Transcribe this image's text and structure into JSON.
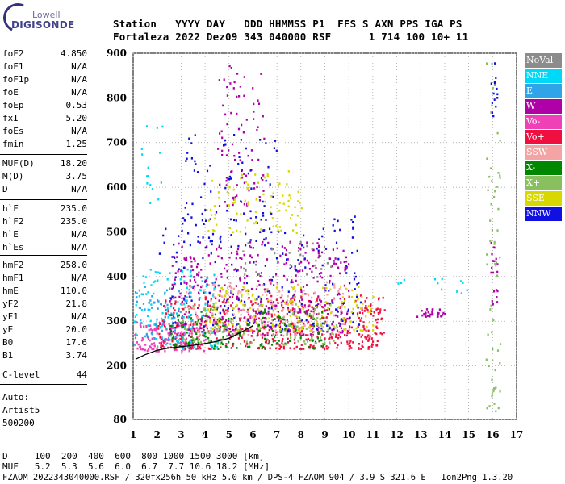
{
  "logo": {
    "top": "Lowell",
    "main": "DIGISONDE"
  },
  "header": {
    "labels": "Station   YYYY DAY   DDD HHMMSS P1  FFS S AXN PPS IGA PS",
    "values": "Fortaleza 2022 Dez09 343 040000 RSF      1 714 100 10+ 11"
  },
  "params_group1": [
    {
      "name": "foF2",
      "value": "4.850"
    },
    {
      "name": "foF1",
      "value": "N/A"
    },
    {
      "name": "foF1p",
      "value": "N/A"
    },
    {
      "name": "foE",
      "value": "N/A"
    },
    {
      "name": "foEp",
      "value": "0.53"
    },
    {
      "name": "fxI",
      "value": "5.20"
    },
    {
      "name": "foEs",
      "value": "N/A"
    },
    {
      "name": "fmin",
      "value": "1.25"
    }
  ],
  "params_group2": [
    {
      "name": "MUF(D)",
      "value": "18.20"
    },
    {
      "name": "M(D)",
      "value": "3.75"
    },
    {
      "name": "D",
      "value": "N/A"
    }
  ],
  "params_group3": [
    {
      "name": "h`F",
      "value": "235.0"
    },
    {
      "name": "h`F2",
      "value": "235.0"
    },
    {
      "name": "h`E",
      "value": "N/A"
    },
    {
      "name": "h`Es",
      "value": "N/A"
    }
  ],
  "params_group4": [
    {
      "name": "hmF2",
      "value": "258.0"
    },
    {
      "name": "hmF1",
      "value": "N/A"
    },
    {
      "name": "hmE",
      "value": "110.0"
    },
    {
      "name": "yF2",
      "value": "21.8"
    },
    {
      "name": "yF1",
      "value": "N/A"
    },
    {
      "name": "yE",
      "value": "20.0"
    },
    {
      "name": "B0",
      "value": "17.6"
    },
    {
      "name": "B1",
      "value": "3.74"
    }
  ],
  "params_group5": [
    {
      "name": "C-level",
      "value": "44"
    }
  ],
  "auto": {
    "line1": "Auto:",
    "line2": "Artist5",
    "line3": "500200"
  },
  "footer": {
    "d_row": "D     100  200  400  600  800 1000 1500 3000 [km]",
    "muf_row": "MUF   5.2  5.3  5.6  6.0  6.7  7.7 10.6 18.2 [MHz]",
    "info": "FZAOM_2022343040000.RSF / 320fx256h 50 kHz 5.0 km / DPS-4 FZAOM 904 / 3.9 S 321.6 E   Ion2Png 1.3.20"
  },
  "legend": [
    {
      "label": "NoVal",
      "color": "#8c8c8c"
    },
    {
      "label": "NNE",
      "color": "#00d8f8"
    },
    {
      "label": "E",
      "color": "#2fa4e8"
    },
    {
      "label": "W",
      "color": "#b000a8"
    },
    {
      "label": "Vo-",
      "color": "#f040b8"
    },
    {
      "label": "Vo+",
      "color": "#f01040"
    },
    {
      "label": "SSW",
      "color": "#f4a4a4"
    },
    {
      "label": "X-",
      "color": "#008800"
    },
    {
      "label": "X+",
      "color": "#88c060"
    },
    {
      "label": "SSE",
      "color": "#d8d800"
    },
    {
      "label": "NNW",
      "color": "#1010e0"
    }
  ],
  "chart_data": {
    "type": "scatter",
    "title": "",
    "xlabel": "",
    "ylabel": "",
    "xlim": [
      1,
      17
    ],
    "ylim": [
      80,
      900
    ],
    "x_ticks": [
      "1",
      "2",
      "3",
      "4",
      "5",
      "6",
      "7",
      "8",
      "9",
      "10",
      "11",
      "12",
      "13",
      "14",
      "15",
      "16",
      "17"
    ],
    "y_ticks": [
      "80",
      "200",
      "300",
      "400",
      "500",
      "600",
      "700",
      "800",
      "900"
    ],
    "grid": true,
    "trace_curve": {
      "name": "",
      "x": [
        1.1,
        1.5,
        2.0,
        2.5,
        3.0,
        3.5,
        4.0,
        4.5,
        5.0,
        5.5,
        6.0
      ],
      "y": [
        215,
        225,
        235,
        240,
        243,
        246,
        250,
        255,
        262,
        275,
        290
      ]
    },
    "clusters": [
      {
        "orientation": "Vo-",
        "x_range": [
          1.0,
          4.0
        ],
        "y_range": [
          235,
          300
        ],
        "count": 160
      },
      {
        "orientation": "Vo+",
        "x_range": [
          2.0,
          11.5
        ],
        "y_range": [
          240,
          360
        ],
        "count": 500
      },
      {
        "orientation": "W",
        "x_range": [
          2.5,
          10.0
        ],
        "y_range": [
          270,
          480
        ],
        "count": 450
      },
      {
        "orientation": "NNW",
        "x_range": [
          2.0,
          10.5
        ],
        "y_range": [
          280,
          540
        ],
        "count": 200
      },
      {
        "orientation": "NNE",
        "x_range": [
          1.0,
          4.5
        ],
        "y_range": [
          240,
          420
        ],
        "count": 140
      },
      {
        "orientation": "E",
        "x_range": [
          1.0,
          3.5
        ],
        "y_range": [
          260,
          380
        ],
        "count": 70
      },
      {
        "orientation": "SSW",
        "x_range": [
          3.0,
          10.0
        ],
        "y_range": [
          270,
          390
        ],
        "count": 180
      },
      {
        "orientation": "SSE",
        "x_range": [
          4.0,
          11.0
        ],
        "y_range": [
          280,
          380
        ],
        "count": 170
      },
      {
        "orientation": "X-",
        "x_range": [
          2.5,
          9.0
        ],
        "y_range": [
          240,
          330
        ],
        "count": 150
      },
      {
        "orientation": "X+",
        "x_range": [
          3.0,
          9.5
        ],
        "y_range": [
          250,
          340
        ],
        "count": 120
      },
      {
        "orientation": "W",
        "x_range": [
          4.5,
          6.5
        ],
        "y_range": [
          560,
          880
        ],
        "count": 90
      },
      {
        "orientation": "SSE",
        "x_range": [
          4.0,
          8.0
        ],
        "y_range": [
          500,
          640
        ],
        "count": 90
      },
      {
        "orientation": "NNW",
        "x_range": [
          3.0,
          7.0
        ],
        "y_range": [
          480,
          720
        ],
        "count": 80
      },
      {
        "orientation": "W",
        "x_range": [
          12.8,
          14.0
        ],
        "y_range": [
          312,
          330
        ],
        "count": 30
      },
      {
        "orientation": "NNE",
        "x_range": [
          12.0,
          15.0
        ],
        "y_range": [
          360,
          400
        ],
        "count": 12
      },
      {
        "orientation": "X+",
        "x_range": [
          15.7,
          16.3
        ],
        "y_range": [
          100,
          880
        ],
        "count": 60
      },
      {
        "orientation": "NNW",
        "x_range": [
          15.9,
          16.2
        ],
        "y_range": [
          760,
          880
        ],
        "count": 15
      },
      {
        "orientation": "W",
        "x_range": [
          15.9,
          16.2
        ],
        "y_range": [
          340,
          480
        ],
        "count": 20
      },
      {
        "orientation": "NNE",
        "x_range": [
          1.3,
          2.2
        ],
        "y_range": [
          560,
          860
        ],
        "count": 15
      },
      {
        "orientation": "NoVal",
        "x_range": [
          5.5,
          9.5
        ],
        "y_range": [
          400,
          480
        ],
        "count": 30
      }
    ]
  }
}
